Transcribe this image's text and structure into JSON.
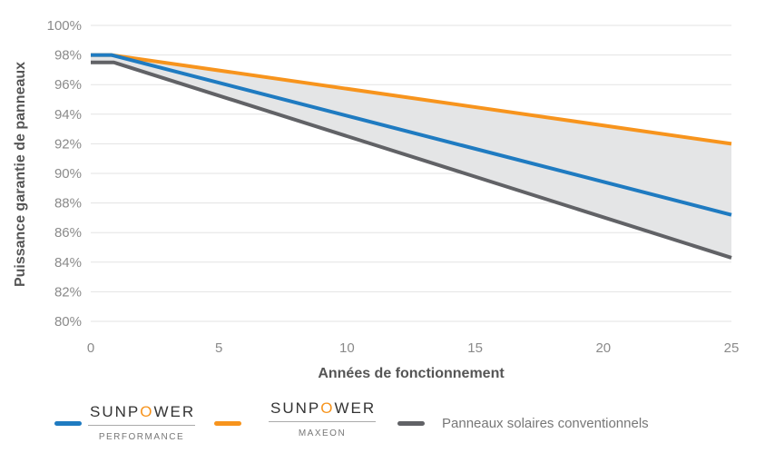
{
  "chart_data": {
    "type": "line",
    "xlabel": "Années de fonctionnement",
    "ylabel": "Puissance garantie de panneaux",
    "xlim": [
      0,
      25
    ],
    "ylim": [
      80,
      100
    ],
    "xticks": [
      "0",
      "5",
      "10",
      "15",
      "20",
      "25"
    ],
    "yticks": [
      "80%",
      "82%",
      "84%",
      "86%",
      "88%",
      "90%",
      "92%",
      "94%",
      "96%",
      "98%",
      "100%"
    ],
    "grid": "horizontal",
    "legend_position": "bottom",
    "shaded_region": {
      "between": [
        "SunPower Maxeon",
        "Panneaux solaires conventionnels"
      ],
      "color": "#e4e5e6"
    },
    "series": [
      {
        "name": "SunPower Maxeon",
        "color": "#f7941d",
        "x": [
          0,
          0.8,
          25
        ],
        "y": [
          98,
          98,
          92
        ]
      },
      {
        "name": "SunPower Performance",
        "color": "#1f7bc1",
        "x": [
          0,
          0.8,
          25
        ],
        "y": [
          98,
          98,
          87.2
        ]
      },
      {
        "name": "Panneaux solaires conventionnels",
        "color": "#616266",
        "x": [
          0,
          0.9,
          25
        ],
        "y": [
          97.5,
          97.5,
          84.3
        ]
      }
    ]
  },
  "legend": {
    "performance": {
      "logo": "SUNPOWER",
      "sub": "PERFORMANCE",
      "color": "#1f7bc1"
    },
    "maxeon": {
      "logo": "SUNPOWER",
      "sub": "MAXEON",
      "color": "#f7941d"
    },
    "conventional": {
      "label": "Panneaux solaires conventionnels",
      "color": "#616266"
    }
  }
}
